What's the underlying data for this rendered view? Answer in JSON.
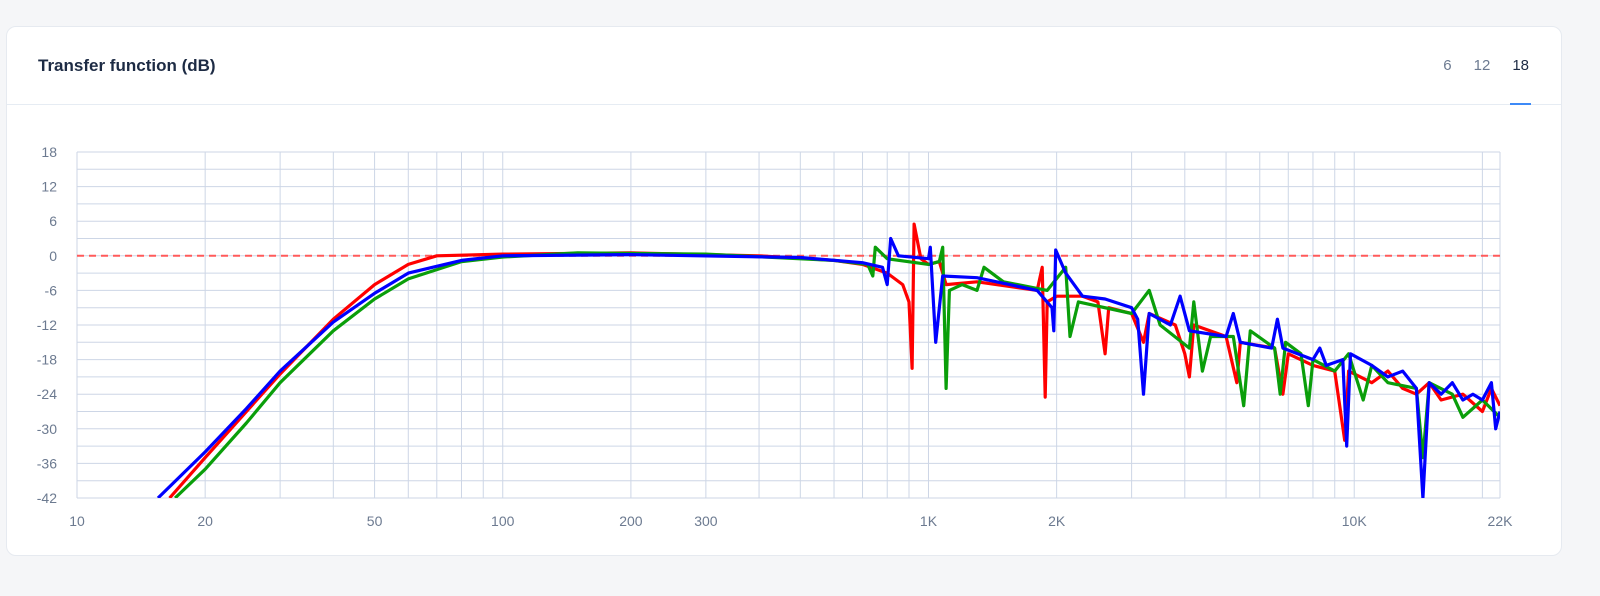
{
  "header": {
    "title": "Transfer function (dB)",
    "tabs": [
      {
        "label": "6"
      },
      {
        "label": "12"
      },
      {
        "label": "18",
        "active": true
      }
    ]
  },
  "chart_data": {
    "type": "line",
    "title": "Transfer function (dB)",
    "x_scale": "log",
    "xlim": [
      10,
      22000
    ],
    "ylim": [
      -42,
      18
    ],
    "x_ticks": [
      {
        "v": 10,
        "label": "10"
      },
      {
        "v": 20,
        "label": "20"
      },
      {
        "v": 50,
        "label": "50"
      },
      {
        "v": 100,
        "label": "100"
      },
      {
        "v": 200,
        "label": "200"
      },
      {
        "v": 300,
        "label": "300"
      },
      {
        "v": 1000,
        "label": "1K"
      },
      {
        "v": 2000,
        "label": "2K"
      },
      {
        "v": 10000,
        "label": "10K"
      },
      {
        "v": 22000,
        "label": "22K"
      }
    ],
    "y_ticks": [
      18,
      12,
      6,
      0,
      -6,
      -12,
      -18,
      -24,
      -30,
      -36,
      -42
    ],
    "grid": true,
    "reference_line": {
      "y": 0,
      "color": "#ff5a5a",
      "style": "dashed"
    },
    "series": [
      {
        "color": "#ff0000",
        "points": [
          [
            16.5,
            -42
          ],
          [
            20,
            -35
          ],
          [
            25,
            -27
          ],
          [
            30,
            -20.5
          ],
          [
            40,
            -11
          ],
          [
            50,
            -5
          ],
          [
            60,
            -1.5
          ],
          [
            70,
            0
          ],
          [
            100,
            0.3
          ],
          [
            200,
            0.5
          ],
          [
            400,
            0
          ],
          [
            600,
            -0.8
          ],
          [
            700,
            -1.5
          ],
          [
            800,
            -3
          ],
          [
            870,
            -5
          ],
          [
            900,
            -8
          ],
          [
            915,
            -19.5
          ],
          [
            925,
            5.5
          ],
          [
            960,
            -0.5
          ],
          [
            1000,
            -1.5
          ],
          [
            1060,
            -1
          ],
          [
            1100,
            -5
          ],
          [
            1300,
            -4.5
          ],
          [
            1800,
            -6
          ],
          [
            1850,
            -2
          ],
          [
            1880,
            -24.5
          ],
          [
            1900,
            -8
          ],
          [
            2000,
            -7
          ],
          [
            2300,
            -7
          ],
          [
            2500,
            -8
          ],
          [
            2600,
            -17
          ],
          [
            2650,
            -9
          ],
          [
            3000,
            -10
          ],
          [
            3200,
            -15
          ],
          [
            3300,
            -10
          ],
          [
            3800,
            -12
          ],
          [
            4000,
            -17
          ],
          [
            4100,
            -21
          ],
          [
            4200,
            -12
          ],
          [
            5000,
            -14
          ],
          [
            5300,
            -22
          ],
          [
            5400,
            -15
          ],
          [
            6500,
            -16
          ],
          [
            6800,
            -24
          ],
          [
            7000,
            -17
          ],
          [
            8000,
            -19
          ],
          [
            9000,
            -20
          ],
          [
            9500,
            -32
          ],
          [
            9700,
            -20
          ],
          [
            11000,
            -22
          ],
          [
            12000,
            -20
          ],
          [
            13000,
            -23
          ],
          [
            14000,
            -24
          ],
          [
            15000,
            -22
          ],
          [
            16000,
            -25
          ],
          [
            18000,
            -24
          ],
          [
            20000,
            -27
          ],
          [
            21000,
            -23
          ],
          [
            22000,
            -26
          ]
        ]
      },
      {
        "color": "#0a9e0a",
        "points": [
          [
            17,
            -42
          ],
          [
            20,
            -37
          ],
          [
            25,
            -29
          ],
          [
            30,
            -22
          ],
          [
            40,
            -13
          ],
          [
            50,
            -7.5
          ],
          [
            60,
            -4
          ],
          [
            80,
            -1
          ],
          [
            100,
            -0.2
          ],
          [
            150,
            0.5
          ],
          [
            300,
            0.3
          ],
          [
            600,
            -0.8
          ],
          [
            720,
            -1.5
          ],
          [
            740,
            -3.5
          ],
          [
            750,
            1.5
          ],
          [
            800,
            -0.5
          ],
          [
            1000,
            -1.5
          ],
          [
            1060,
            -1
          ],
          [
            1080,
            1.5
          ],
          [
            1100,
            -23
          ],
          [
            1120,
            -6
          ],
          [
            1200,
            -5
          ],
          [
            1300,
            -6
          ],
          [
            1350,
            -2
          ],
          [
            1500,
            -4.5
          ],
          [
            1900,
            -6
          ],
          [
            2100,
            -2
          ],
          [
            2150,
            -14
          ],
          [
            2250,
            -8
          ],
          [
            3000,
            -10
          ],
          [
            3300,
            -6
          ],
          [
            3500,
            -12
          ],
          [
            4100,
            -16
          ],
          [
            4200,
            -8
          ],
          [
            4400,
            -20
          ],
          [
            4600,
            -14
          ],
          [
            5200,
            -14
          ],
          [
            5500,
            -26
          ],
          [
            5700,
            -13
          ],
          [
            6500,
            -16
          ],
          [
            6700,
            -24
          ],
          [
            6900,
            -15
          ],
          [
            7500,
            -17
          ],
          [
            7800,
            -26
          ],
          [
            8000,
            -18
          ],
          [
            9000,
            -20
          ],
          [
            9700,
            -17
          ],
          [
            10500,
            -25
          ],
          [
            11000,
            -19
          ],
          [
            12000,
            -22
          ],
          [
            14000,
            -23
          ],
          [
            14500,
            -35
          ],
          [
            15000,
            -22
          ],
          [
            17000,
            -24
          ],
          [
            18000,
            -28
          ],
          [
            20000,
            -25
          ],
          [
            22000,
            -28
          ]
        ]
      },
      {
        "color": "#0000ff",
        "points": [
          [
            15.5,
            -42
          ],
          [
            20,
            -34
          ],
          [
            25,
            -26.5
          ],
          [
            30,
            -20
          ],
          [
            40,
            -11.5
          ],
          [
            50,
            -6.5
          ],
          [
            60,
            -3
          ],
          [
            80,
            -0.8
          ],
          [
            100,
            0
          ],
          [
            200,
            0.2
          ],
          [
            500,
            -0.3
          ],
          [
            700,
            -1.2
          ],
          [
            780,
            -2
          ],
          [
            800,
            -5
          ],
          [
            815,
            3
          ],
          [
            850,
            0
          ],
          [
            1000,
            -0.5
          ],
          [
            1010,
            1.5
          ],
          [
            1040,
            -15
          ],
          [
            1080,
            -3.5
          ],
          [
            1300,
            -3.8
          ],
          [
            1800,
            -6
          ],
          [
            1950,
            -9
          ],
          [
            1970,
            -13
          ],
          [
            1990,
            1
          ],
          [
            2100,
            -3
          ],
          [
            2300,
            -7
          ],
          [
            2600,
            -7.5
          ],
          [
            3000,
            -9
          ],
          [
            3100,
            -11
          ],
          [
            3200,
            -24
          ],
          [
            3300,
            -10
          ],
          [
            3700,
            -12
          ],
          [
            3900,
            -7
          ],
          [
            4100,
            -13
          ],
          [
            5000,
            -14
          ],
          [
            5200,
            -10
          ],
          [
            5400,
            -15
          ],
          [
            6400,
            -16
          ],
          [
            6600,
            -11
          ],
          [
            6800,
            -16
          ],
          [
            8000,
            -18
          ],
          [
            8300,
            -16
          ],
          [
            8600,
            -19
          ],
          [
            9400,
            -18
          ],
          [
            9600,
            -33
          ],
          [
            9800,
            -17
          ],
          [
            11000,
            -19
          ],
          [
            12000,
            -21
          ],
          [
            13000,
            -20
          ],
          [
            14000,
            -23
          ],
          [
            14500,
            -42
          ],
          [
            15000,
            -22
          ],
          [
            16000,
            -24
          ],
          [
            17000,
            -22
          ],
          [
            18000,
            -25
          ],
          [
            19000,
            -24
          ],
          [
            20000,
            -25
          ],
          [
            21000,
            -22
          ],
          [
            21500,
            -30
          ],
          [
            22000,
            -27
          ]
        ]
      }
    ]
  }
}
